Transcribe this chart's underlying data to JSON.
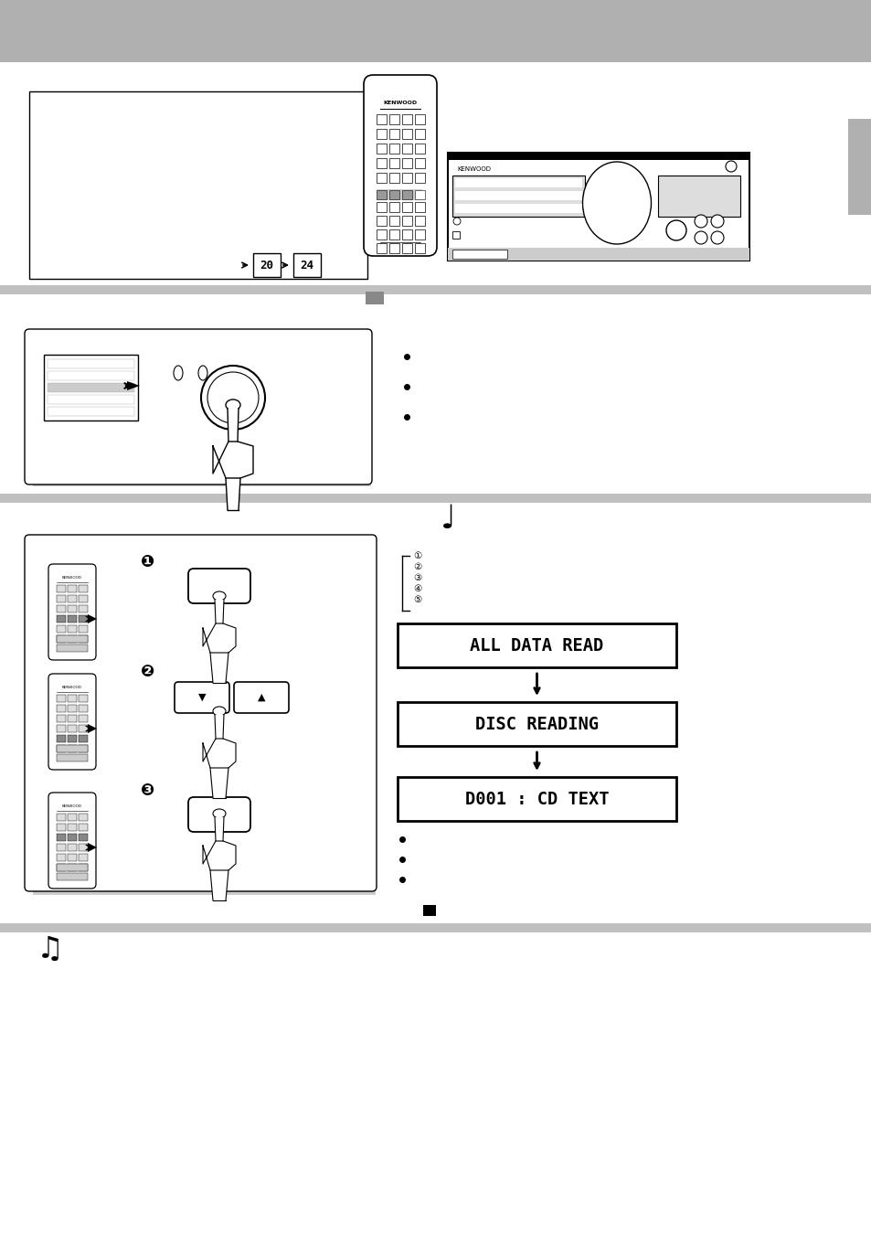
{
  "bg_color": "#ffffff",
  "header_color": "#b0b0b0",
  "tab_color": "#b0b0b0",
  "separator_color": "#c0c0c0",
  "display1": "ALL DATA READ",
  "display2": "DISC READING",
  "display3": "D001 : CD TEXT",
  "page_ref1": "20",
  "page_ref2": "24",
  "fig_w": 9.54,
  "fig_h": 13.51,
  "dpi": 100
}
